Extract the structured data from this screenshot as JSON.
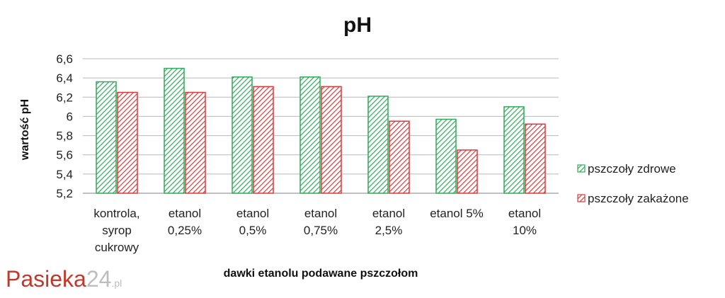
{
  "chart_data": {
    "type": "bar",
    "title": "pH",
    "xlabel": "dawki etanolu podawane pszczołom",
    "ylabel": "wartość pH",
    "ylim": [
      5.2,
      6.6
    ],
    "yticks": [
      "5,2",
      "5,4",
      "5,6",
      "5,8",
      "6",
      "6,2",
      "6,4",
      "6,6"
    ],
    "ytick_values": [
      5.2,
      5.4,
      5.6,
      5.8,
      6.0,
      6.2,
      6.4,
      6.6
    ],
    "grid": true,
    "legend_position": "right",
    "categories": [
      [
        "kontrola,",
        "syrop",
        "cukrowy"
      ],
      [
        "etanol",
        "0,25%"
      ],
      [
        "etanol",
        "0,5%"
      ],
      [
        "etanol",
        "0,75%"
      ],
      [
        "etanol",
        "2,5%"
      ],
      [
        "etanol 5%"
      ],
      [
        "etanol",
        "10%"
      ]
    ],
    "series": [
      {
        "name": "pszczoły zdrowe",
        "color": "#2eaa5a",
        "values": [
          6.36,
          6.5,
          6.41,
          6.41,
          6.21,
          5.97,
          6.1
        ]
      },
      {
        "name": "pszczoły zakażone",
        "color": "#d83a3a",
        "values": [
          6.25,
          6.25,
          6.31,
          6.31,
          5.95,
          5.65,
          5.92
        ]
      }
    ]
  },
  "watermark": {
    "brand": "Pasieka",
    "number": "24",
    "suffix": ".pl"
  }
}
